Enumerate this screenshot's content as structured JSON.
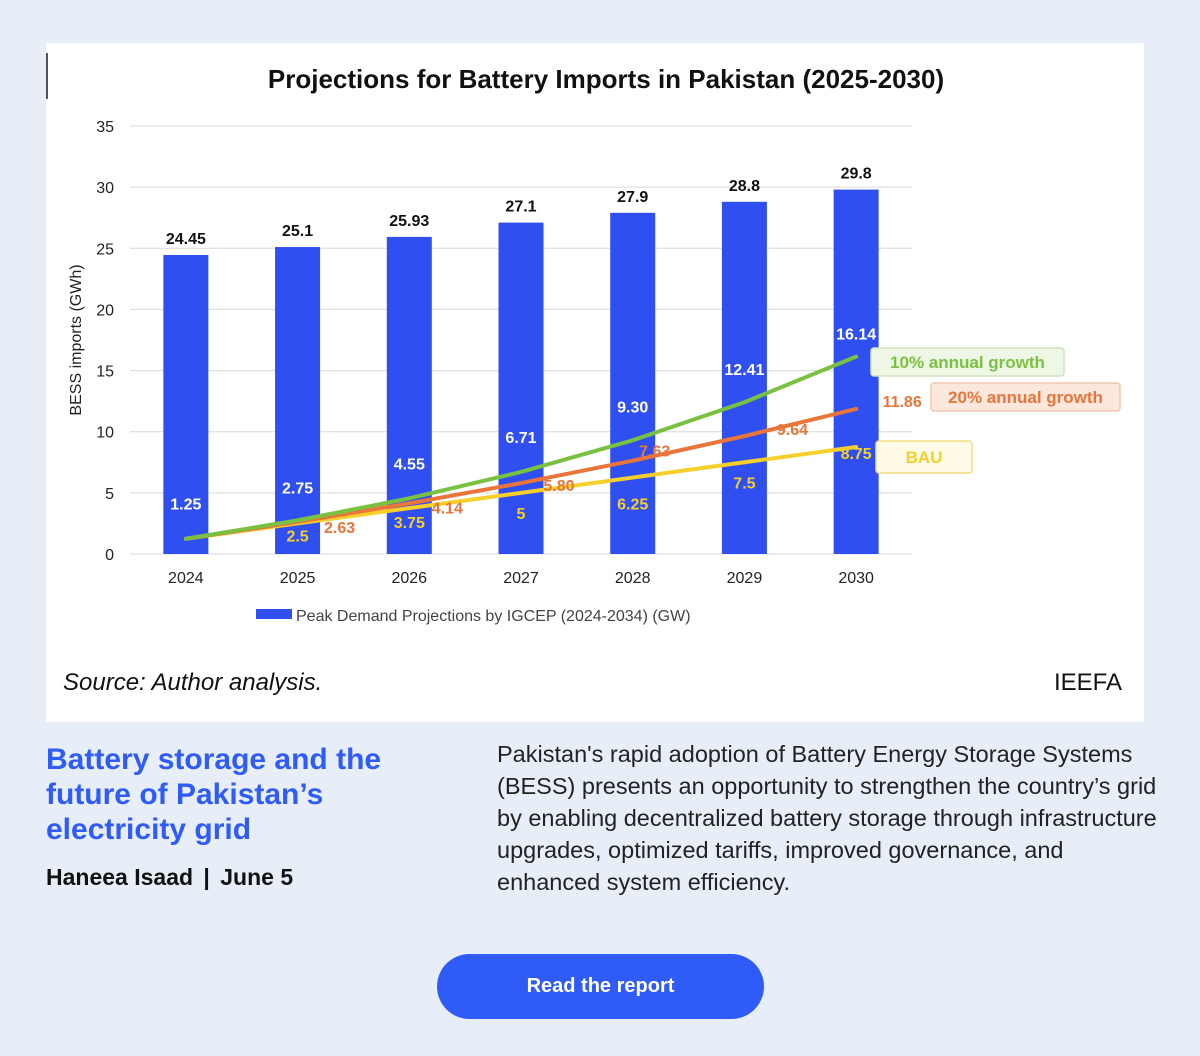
{
  "source_note": "Source: Author analysis.",
  "brand": "IEEFA",
  "headline": "Battery storage and the future of Pakistan’s electricity grid",
  "byline": {
    "author": "Haneea Isaad",
    "separator": "|",
    "date": "June 5"
  },
  "description": "Pakistan's rapid adoption of Battery Energy Storage Systems (BESS) presents an opportunity to strengthen the country’s grid by enabling decentralized battery storage through infrastructure upgrades, optimized tariffs, improved governance, and enhanced system efficiency.",
  "cta_label": "Read the report",
  "chart_data": {
    "type": "bar",
    "title": "Projections for Battery Imports in Pakistan (2025-2030)",
    "ylabel": "BESS imports (GWh)",
    "xlabel": "",
    "ylim": [
      0,
      35
    ],
    "yticks": [
      0,
      5,
      10,
      15,
      20,
      25,
      30,
      35
    ],
    "grid": true,
    "categories": [
      "2024",
      "2025",
      "2026",
      "2027",
      "2028",
      "2029",
      "2030"
    ],
    "legend_position": "bottom",
    "series": [
      {
        "name": "Peak Demand Projections by IGCEP (2024-2034) (GW)",
        "kind": "bar",
        "color": "#2f4ff0",
        "values": [
          24.45,
          25.1,
          25.93,
          27.1,
          27.9,
          28.8,
          29.8
        ],
        "labels": [
          "24.45",
          "25.1",
          "25.93",
          "27.1",
          "27.9",
          "28.8",
          "29.8"
        ]
      },
      {
        "name": "10% annual growth",
        "kind": "line",
        "color": "#7ac142",
        "values": [
          1.25,
          2.75,
          4.55,
          6.71,
          9.3,
          12.41,
          16.14
        ],
        "labels": [
          "1.25",
          "2.75",
          "4.55",
          "6.71",
          "9.30",
          "12.41",
          "16.14"
        ]
      },
      {
        "name": "20% annual growth",
        "kind": "line",
        "color": "#e8753a",
        "values": [
          1.25,
          2.63,
          4.14,
          5.8,
          7.63,
          9.64,
          11.86
        ],
        "labels": [
          "",
          "2.63",
          "4.14",
          "5.80",
          "7.63",
          "9.64",
          "11.86"
        ]
      },
      {
        "name": "BAU",
        "kind": "line",
        "color": "#f6cf2a",
        "values": [
          1.25,
          2.5,
          3.75,
          5,
          6.25,
          7.5,
          8.75
        ],
        "labels": [
          "",
          "2.5",
          "3.75",
          "5",
          "6.25",
          "7.5",
          "8.75"
        ]
      }
    ]
  }
}
